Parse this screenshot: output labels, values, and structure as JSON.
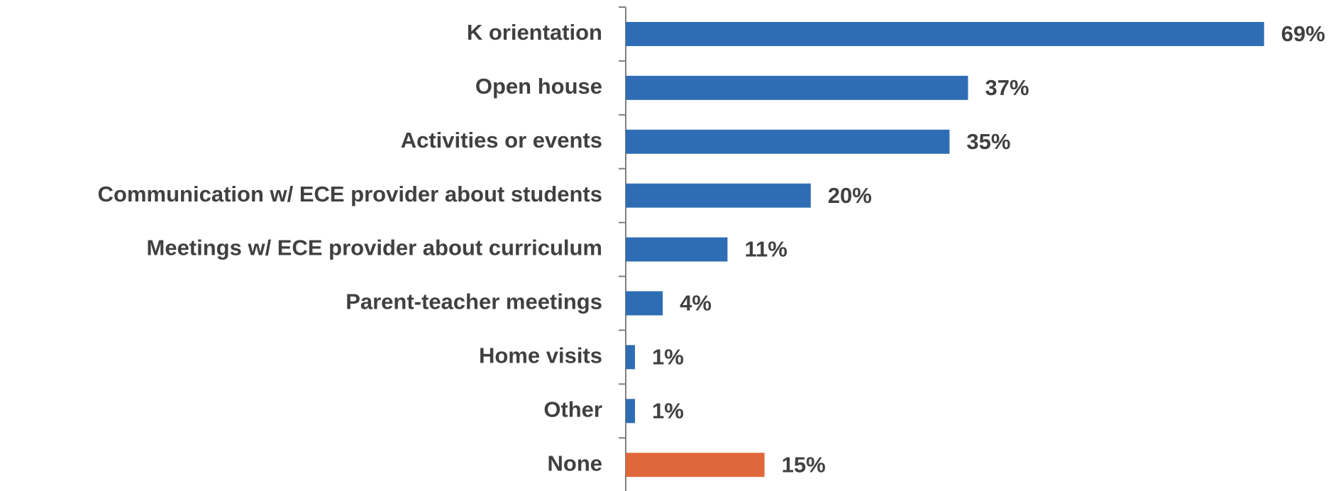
{
  "chart_data": {
    "type": "hbar",
    "categories": [
      "K orientation",
      "Open house",
      "Activities or events",
      "Communication w/ ECE provider about students",
      "Meetings w/ ECE provider about curriculum",
      "Parent-teacher meetings",
      "Home visits",
      "Other",
      "None"
    ],
    "values": [
      69,
      37,
      35,
      20,
      11,
      4,
      1,
      1,
      15
    ],
    "value_labels": [
      "69%",
      "37%",
      "35%",
      "20%",
      "11%",
      "4%",
      "1%",
      "1%",
      "15%"
    ],
    "colors": [
      "#2e6db4",
      "#2e6db4",
      "#2e6db4",
      "#2e6db4",
      "#2e6db4",
      "#2e6db4",
      "#2e6db4",
      "#2e6db4",
      "#e0673a"
    ]
  }
}
